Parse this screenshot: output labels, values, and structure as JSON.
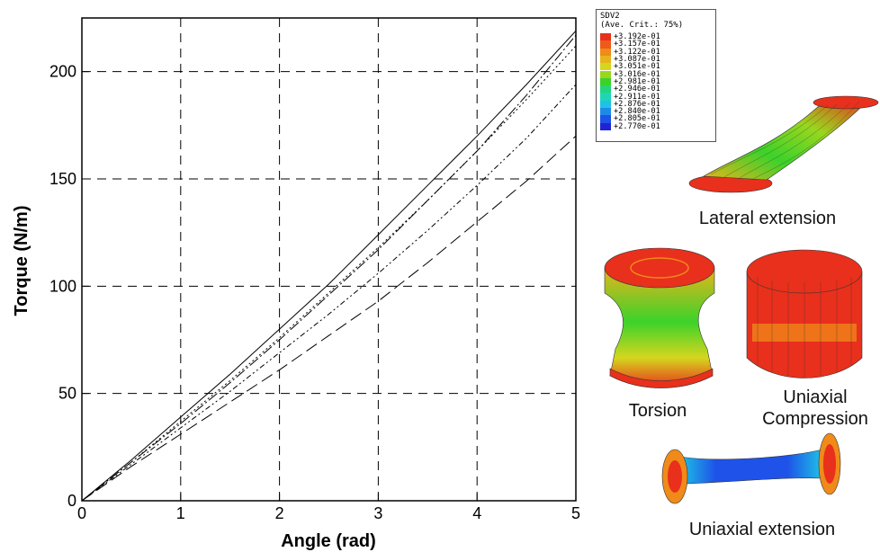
{
  "chart_data": {
    "type": "line",
    "xlabel": "Angle (rad)",
    "ylabel": "Torque (N/m)",
    "xlim": [
      0,
      5
    ],
    "ylim": [
      0,
      225
    ],
    "xticks": [
      0,
      1,
      2,
      3,
      4,
      5
    ],
    "yticks": [
      0,
      50,
      100,
      150,
      200
    ],
    "xtick_labels": [
      "0",
      "1",
      "2",
      "3",
      "4",
      "5"
    ],
    "ytick_labels": [
      "0",
      "50",
      "100",
      "150",
      "200"
    ],
    "grid": true,
    "series": [
      {
        "x": [
          0,
          0.5,
          1,
          1.5,
          2,
          2.5,
          3,
          3.5,
          4,
          4.5,
          5
        ],
        "y": [
          0,
          19,
          39,
          59,
          80,
          101,
          124,
          147,
          170,
          194,
          219
        ]
      },
      {
        "x": [
          0,
          0.5,
          1,
          1.5,
          2,
          2.5,
          3,
          3.5,
          4,
          4.5,
          5
        ],
        "y": [
          0,
          18,
          37,
          56,
          76,
          97,
          118,
          140,
          163,
          187,
          212
        ]
      },
      {
        "x": [
          0,
          0.5,
          1,
          1.5,
          2,
          2.5,
          3,
          3.5,
          4,
          4.5,
          5
        ],
        "y": [
          0,
          18,
          36,
          55,
          75,
          96,
          117,
          140,
          163,
          189,
          217
        ]
      },
      {
        "x": [
          0,
          0.5,
          1,
          1.5,
          2,
          2.5,
          3,
          3.5,
          4,
          4.5,
          5
        ],
        "y": [
          0,
          17,
          34,
          51,
          69,
          87,
          106,
          126,
          147,
          169,
          194
        ]
      },
      {
        "x": [
          0,
          0.5,
          1,
          1.5,
          2,
          2.5,
          3,
          3.5,
          4,
          4.5,
          5
        ],
        "y": [
          0,
          16,
          31,
          46,
          61,
          77,
          93,
          111,
          130,
          149,
          170
        ]
      }
    ]
  },
  "legend": {
    "title_line1": "SDV2",
    "title_line2": "(Ave. Crit.: 75%)",
    "entries": [
      {
        "label": "+3.192e-01",
        "color": "#e8301c"
      },
      {
        "label": "+3.157e-01",
        "color": "#ef5a1a"
      },
      {
        "label": "+3.122e-01",
        "color": "#f08a18"
      },
      {
        "label": "+3.087e-01",
        "color": "#e8b41c"
      },
      {
        "label": "+3.051e-01",
        "color": "#d6d61e"
      },
      {
        "label": "+3.016e-01",
        "color": "#9ad61e"
      },
      {
        "label": "+2.981e-01",
        "color": "#3cd22a"
      },
      {
        "label": "+2.946e-01",
        "color": "#22d67a"
      },
      {
        "label": "+2.911e-01",
        "color": "#1ed6b6"
      },
      {
        "label": "+2.876e-01",
        "color": "#1ec2e6"
      },
      {
        "label": "+2.840e-01",
        "color": "#1e8ae8"
      },
      {
        "label": "+2.805e-01",
        "color": "#1e52e8"
      },
      {
        "label": "+2.770e-01",
        "color": "#1e24d6"
      }
    ]
  },
  "captions": {
    "lateral": "Lateral extension",
    "torsion": "Torsion",
    "compression_line1": "Uniaxial",
    "compression_line2": "Compression",
    "extension": "Uniaxial extension"
  }
}
